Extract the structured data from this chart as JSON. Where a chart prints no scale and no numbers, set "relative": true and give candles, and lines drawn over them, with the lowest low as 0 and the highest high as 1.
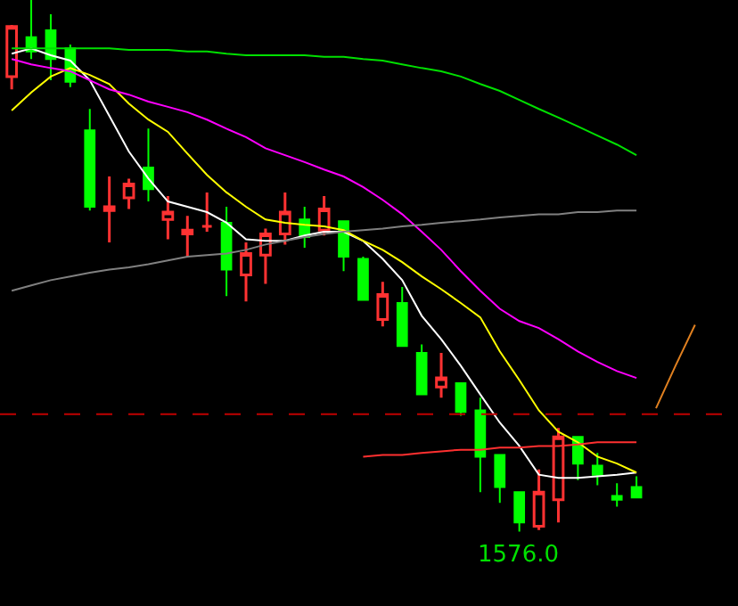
{
  "chart_data": {
    "type": "candlestick",
    "relative": true,
    "categories": [
      null,
      null,
      null,
      null,
      null,
      null,
      null,
      null,
      null,
      null,
      null,
      null,
      null,
      null,
      null,
      null,
      null,
      null,
      null,
      null,
      null,
      null,
      null,
      null,
      null,
      null,
      null,
      null,
      null,
      null,
      null,
      null,
      null,
      null,
      null,
      null
    ],
    "ohlc": [
      [
        0.856,
        0.953,
        0.832,
        0.95
      ],
      [
        0.93,
        1.0,
        0.889,
        0.903
      ],
      [
        0.943,
        0.973,
        0.849,
        0.889
      ],
      [
        0.909,
        0.916,
        0.836,
        0.846
      ],
      [
        0.755,
        0.795,
        0.604,
        0.611
      ],
      [
        0.604,
        0.668,
        0.544,
        0.611
      ],
      [
        0.628,
        0.664,
        0.607,
        0.654
      ],
      [
        0.685,
        0.758,
        0.621,
        0.644
      ],
      [
        0.587,
        0.631,
        0.55,
        0.601
      ],
      [
        0.56,
        0.594,
        0.517,
        0.567
      ],
      [
        0.574,
        0.638,
        0.564,
        0.574
      ],
      [
        0.581,
        0.611,
        0.443,
        0.493
      ],
      [
        0.483,
        0.544,
        0.433,
        0.523
      ],
      [
        0.52,
        0.57,
        0.466,
        0.56
      ],
      [
        0.56,
        0.638,
        0.54,
        0.601
      ],
      [
        0.587,
        0.611,
        0.534,
        0.554
      ],
      [
        0.567,
        0.631,
        0.557,
        0.607
      ],
      [
        0.584,
        0.584,
        0.49,
        0.517
      ],
      [
        0.513,
        0.517,
        0.436,
        0.436
      ],
      [
        0.399,
        0.47,
        0.386,
        0.446
      ],
      [
        0.43,
        0.46,
        0.349,
        0.349
      ],
      [
        0.336,
        0.352,
        0.258,
        0.258
      ],
      [
        0.272,
        0.336,
        0.252,
        0.289
      ],
      [
        0.279,
        0.279,
        0.218,
        0.225
      ],
      [
        0.228,
        0.252,
        0.074,
        0.141
      ],
      [
        0.144,
        0.144,
        0.054,
        0.084
      ],
      [
        0.074,
        0.074,
        0.0,
        0.017
      ],
      [
        0.01,
        0.117,
        0.003,
        0.074
      ],
      [
        0.06,
        0.195,
        0.017,
        0.178
      ],
      [
        0.178,
        0.178,
        0.097,
        0.128
      ],
      [
        0.124,
        0.148,
        0.087,
        0.107
      ],
      [
        0.067,
        0.091,
        0.047,
        0.06
      ],
      [
        0.084,
        0.104,
        0.064,
        0.064
      ],
      null,
      null,
      null
    ],
    "series": [
      {
        "type": "line",
        "color": "#ffffff",
        "values": [
          0.899,
          0.909,
          0.896,
          0.886,
          0.849,
          0.782,
          0.715,
          0.664,
          0.621,
          0.611,
          0.601,
          0.581,
          0.55,
          0.547,
          0.547,
          0.557,
          0.564,
          0.564,
          0.547,
          0.513,
          0.473,
          0.406,
          0.362,
          0.312,
          0.258,
          0.205,
          0.161,
          0.107,
          0.101,
          0.101,
          0.104,
          0.107,
          0.111,
          null,
          null,
          null
        ]
      },
      {
        "type": "line",
        "color": "#ffff00",
        "values": [
          0.792,
          0.826,
          0.856,
          0.872,
          0.859,
          0.842,
          0.805,
          0.775,
          0.752,
          0.711,
          0.671,
          0.638,
          0.611,
          0.587,
          0.581,
          0.577,
          0.574,
          0.567,
          0.547,
          0.53,
          0.507,
          0.48,
          0.456,
          0.43,
          0.403,
          0.339,
          0.285,
          0.228,
          0.188,
          0.168,
          0.141,
          0.128,
          0.111,
          null,
          null,
          null
        ]
      },
      {
        "type": "line",
        "color": "#ff00ff",
        "values": [
          0.889,
          0.879,
          0.872,
          0.866,
          0.849,
          0.832,
          0.822,
          0.809,
          0.799,
          0.789,
          0.775,
          0.758,
          0.742,
          0.721,
          0.708,
          0.695,
          0.681,
          0.668,
          0.648,
          0.624,
          0.597,
          0.564,
          0.53,
          0.49,
          0.453,
          0.419,
          0.396,
          0.383,
          0.362,
          0.339,
          0.319,
          0.302,
          0.289,
          null,
          null,
          null
        ]
      },
      {
        "type": "line",
        "color": "#00e000",
        "values": [
          0.909,
          0.909,
          0.909,
          0.909,
          0.909,
          0.909,
          0.906,
          0.906,
          0.906,
          0.903,
          0.903,
          0.899,
          0.896,
          0.896,
          0.896,
          0.896,
          0.893,
          0.893,
          0.889,
          0.886,
          0.879,
          0.872,
          0.866,
          0.856,
          0.842,
          0.829,
          0.812,
          0.795,
          0.779,
          0.762,
          0.745,
          0.728,
          0.708,
          null,
          null,
          null
        ]
      },
      {
        "type": "line",
        "color": "#808080",
        "values": [
          0.453,
          0.463,
          0.473,
          0.48,
          0.487,
          0.493,
          0.497,
          0.503,
          0.51,
          0.517,
          0.52,
          0.523,
          0.53,
          0.54,
          0.547,
          0.554,
          0.56,
          0.564,
          0.567,
          0.57,
          0.574,
          0.577,
          0.581,
          0.584,
          0.587,
          0.591,
          0.594,
          0.597,
          0.597,
          0.601,
          0.601,
          0.604,
          0.604,
          null,
          null,
          null
        ]
      },
      {
        "type": "line",
        "color": "#ff3030",
        "values": [
          null,
          null,
          null,
          null,
          null,
          null,
          null,
          null,
          null,
          null,
          null,
          null,
          null,
          null,
          null,
          null,
          null,
          null,
          0.141,
          0.144,
          0.144,
          0.148,
          0.151,
          0.154,
          0.154,
          0.158,
          0.158,
          0.161,
          0.161,
          0.164,
          0.168,
          0.168,
          0.168,
          null,
          null,
          null
        ]
      },
      {
        "type": "line",
        "color": "#e08020",
        "values": [
          null,
          null,
          null,
          null,
          null,
          null,
          null,
          null,
          null,
          null,
          null,
          null,
          null,
          null,
          null,
          null,
          null,
          null,
          null,
          null,
          null,
          null,
          null,
          null,
          null,
          null,
          null,
          null,
          null,
          null,
          null,
          null,
          null,
          0.232,
          0.312,
          0.389
        ]
      }
    ],
    "ref_lines": [
      {
        "axis": "y",
        "value": 0.221,
        "color": "#c00000",
        "line_style": "dashed"
      }
    ],
    "annotations": [
      {
        "text": "1576.0",
        "y": 0.0
      }
    ]
  }
}
